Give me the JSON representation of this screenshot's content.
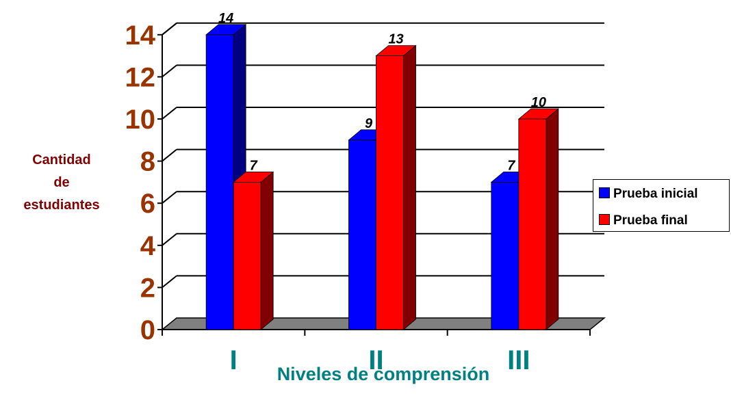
{
  "chart_data": {
    "type": "bar",
    "ylabel_lines": [
      "Cantidad",
      "de",
      "estudiantes"
    ],
    "xlabel": "Niveles de comprensión",
    "categories": [
      "I",
      "II",
      "III"
    ],
    "series": [
      {
        "name": "Prueba inicial",
        "values": [
          14,
          9,
          7
        ],
        "color": "#0000FF",
        "side_color": "#000080",
        "labels": [
          "14",
          "9",
          "7"
        ]
      },
      {
        "name": "Prueba final",
        "values": [
          7,
          13,
          10
        ],
        "color": "#FF0000",
        "side_color": "#800000",
        "labels": [
          "7",
          "13",
          "10"
        ]
      }
    ],
    "ylim": [
      0,
      14
    ],
    "yticks": [
      "0",
      "2",
      "4",
      "6",
      "8",
      "10",
      "12",
      "14"
    ],
    "grid": true,
    "three_d": true,
    "legend_position": "right",
    "colors": {
      "tick_labels": "#993300",
      "ylabel": "#800000",
      "xlabel": "#008080",
      "category_labels": "#008080",
      "floor": "#808080"
    }
  }
}
